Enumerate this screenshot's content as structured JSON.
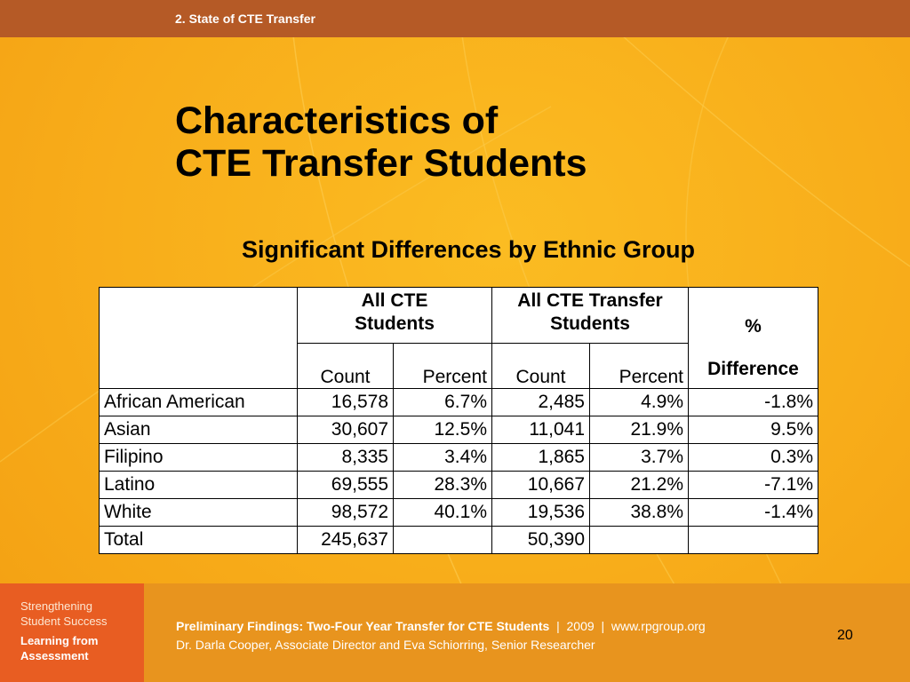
{
  "header": {
    "section": "2. State of CTE Transfer"
  },
  "title": {
    "line1": "Characteristics of",
    "line2": "CTE Transfer Students"
  },
  "subtitle": "Significant Differences by Ethnic Group",
  "table": {
    "group_headers": {
      "all_cte": [
        "All CTE",
        "Students"
      ],
      "all_transfer": [
        "All CTE Transfer",
        "Students"
      ],
      "difference": [
        "%",
        "Difference"
      ]
    },
    "sub_headers": [
      "Count",
      "Percent",
      "Count",
      "Percent"
    ],
    "rows": [
      {
        "label": "African American",
        "count1": "16,578",
        "pct1": "6.7%",
        "count2": "2,485",
        "pct2": "4.9%",
        "diff": "-1.8%"
      },
      {
        "label": "Asian",
        "count1": "30,607",
        "pct1": "12.5%",
        "count2": "11,041",
        "pct2": "21.9%",
        "diff": "9.5%"
      },
      {
        "label": "Filipino",
        "count1": "8,335",
        "pct1": "3.4%",
        "count2": "1,865",
        "pct2": "3.7%",
        "diff": "0.3%"
      },
      {
        "label": "Latino",
        "count1": "69,555",
        "pct1": "28.3%",
        "count2": "10,667",
        "pct2": "21.2%",
        "diff": "-7.1%"
      },
      {
        "label": "White",
        "count1": "98,572",
        "pct1": "40.1%",
        "count2": "19,536",
        "pct2": "38.8%",
        "diff": "-1.4%"
      },
      {
        "label": "Total",
        "count1": "245,637",
        "pct1": "",
        "count2": "50,390",
        "pct2": "",
        "diff": ""
      }
    ]
  },
  "footer": {
    "logo": {
      "line1": "Strengthening",
      "line2": "Student Success",
      "line3": "Learning from",
      "line4": "Assessment"
    },
    "title": "Preliminary Findings: Two-Four Year Transfer for CTE Students",
    "meta": "  |  2009  |  www.rpgroup.org",
    "authors": "Dr. Darla Cooper, Associate Director and Eva Schiorring, Senior Researcher",
    "page_number": "20"
  },
  "colors": {
    "background": "#f8ad1a",
    "top_bar": "#b55a26",
    "footer": "#e8941e",
    "logo_block": "#e85d22"
  }
}
